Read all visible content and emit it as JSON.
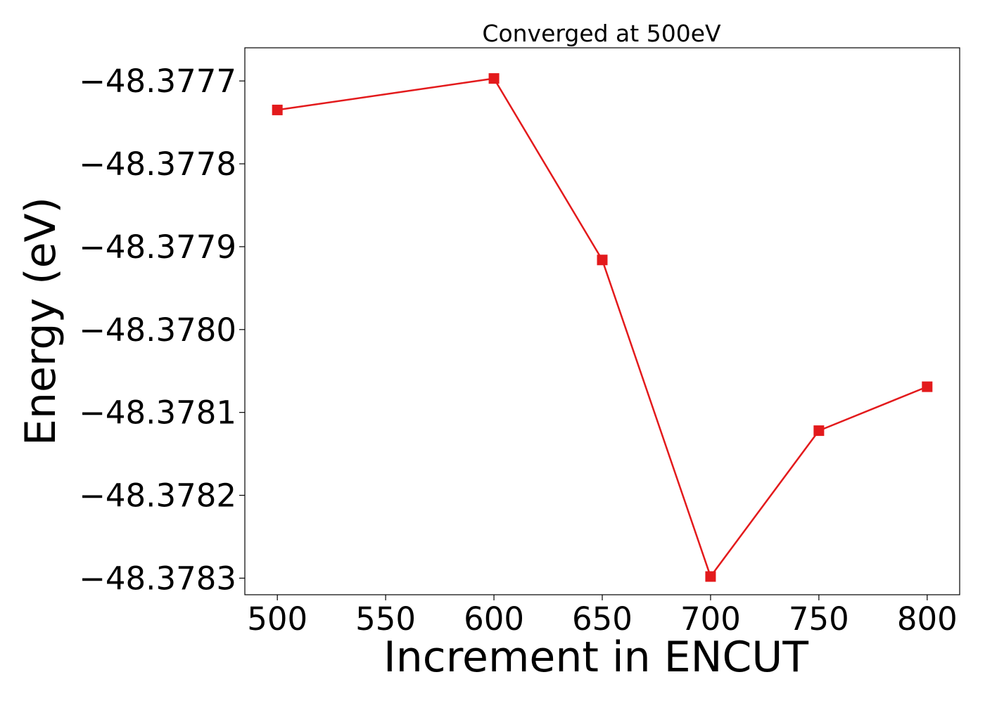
{
  "chart_data": {
    "type": "line",
    "title": "Converged at 500eV",
    "xlabel": "Increment in ENCUT",
    "ylabel": "Energy (eV)",
    "x": [
      500,
      600,
      650,
      700,
      750,
      800
    ],
    "series": [
      {
        "values": [
          -48.377735,
          -48.377697,
          -48.377916,
          -48.378298,
          -48.378122,
          -48.378069
        ],
        "color": "#e31a1c",
        "marker": "square"
      }
    ],
    "xlim": [
      485,
      815
    ],
    "ylim": [
      -48.37832,
      -48.37766
    ],
    "xticks": [
      500,
      550,
      600,
      650,
      700,
      750,
      800
    ],
    "xtick_labels": [
      "500",
      "550",
      "600",
      "650",
      "700",
      "750",
      "800"
    ],
    "yticks": [
      -48.3777,
      -48.3778,
      -48.3779,
      -48.378,
      -48.3781,
      -48.3782,
      -48.3783
    ],
    "ytick_labels": [
      "−48.3777",
      "−48.3778",
      "−48.3779",
      "−48.3780",
      "−48.3781",
      "−48.3782",
      "−48.3783"
    ],
    "grid": false,
    "legend": "none"
  }
}
